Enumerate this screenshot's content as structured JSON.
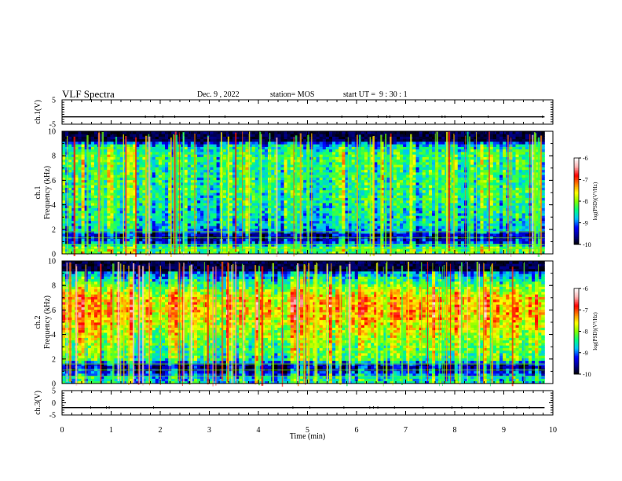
{
  "header": {
    "title": "VLF Spectra",
    "date": "Dec. 9 , 2022",
    "station": "station= MOS",
    "start": "start UT =  9 : 30 : 1"
  },
  "colorbar": {
    "ticks": [
      "-6",
      "-7",
      "-8",
      "-9",
      "-10"
    ],
    "label": "log(PSD)(V²/Hz)",
    "colors": [
      "#000000",
      "#00008f",
      "#0000ff",
      "#00bfff",
      "#00ff80",
      "#80ff00",
      "#ffff00",
      "#ff8000",
      "#ff0000",
      "#ffb0b0",
      "#ffffff"
    ]
  },
  "chart_data": [
    {
      "type": "line",
      "panel": "ch.1(V)",
      "ylabel": "ch.1(V)",
      "ylim": [
        -5,
        5
      ],
      "yticks": [
        "5",
        "-5"
      ],
      "xlim": [
        0,
        10
      ],
      "x": [
        0,
        9.83
      ],
      "y": [
        -2,
        -2
      ]
    },
    {
      "type": "heatmap",
      "panel": "ch.1",
      "ylabel": "ch.1\nFrequency (kHz)",
      "ylim": [
        0,
        10
      ],
      "yticks": [
        "0",
        "2",
        "4",
        "6",
        "8",
        "10"
      ],
      "xlim": [
        0,
        10
      ],
      "x_extent_min": [
        0,
        9.83
      ],
      "colorscale_range": [
        -10,
        -6
      ],
      "band_profile_psd": [
        [
          0.5,
          -8.2
        ],
        [
          1.0,
          -9.3
        ],
        [
          1.5,
          -9.6
        ],
        [
          2.0,
          -8.8
        ],
        [
          3.0,
          -8.6
        ],
        [
          4.0,
          -8.5
        ],
        [
          5.0,
          -8.4
        ],
        [
          6.0,
          -8.4
        ],
        [
          7.0,
          -8.4
        ],
        [
          8.0,
          -8.3
        ],
        [
          8.8,
          -8.6
        ],
        [
          9.3,
          -9.8
        ],
        [
          10.0,
          -10
        ]
      ]
    },
    {
      "type": "heatmap",
      "panel": "ch.2",
      "ylabel": "ch.2\nFrequency (kHz)",
      "ylim": [
        0,
        10
      ],
      "yticks": [
        "0",
        "2",
        "4",
        "6",
        "8",
        "10"
      ],
      "xlim": [
        0,
        10
      ],
      "x_extent_min": [
        0,
        9.83
      ],
      "colorscale_range": [
        -10,
        -6
      ],
      "band_profile_psd": [
        [
          0.5,
          -8.6
        ],
        [
          1.0,
          -9.4
        ],
        [
          1.5,
          -9.6
        ],
        [
          2.0,
          -8.3
        ],
        [
          3.0,
          -8.2
        ],
        [
          4.0,
          -7.9
        ],
        [
          5.0,
          -7.6
        ],
        [
          6.0,
          -7.4
        ],
        [
          7.0,
          -7.5
        ],
        [
          8.0,
          -8.2
        ],
        [
          9.0,
          -9.0
        ],
        [
          9.5,
          -9.8
        ],
        [
          10.0,
          -10
        ]
      ]
    },
    {
      "type": "line",
      "panel": "ch.3(V)",
      "ylabel": "ch.3(V)",
      "ylim": [
        -5,
        5
      ],
      "yticks": [
        "5",
        "0",
        "-5"
      ],
      "xlim": [
        0,
        10
      ],
      "x": [
        0,
        9.83
      ],
      "y": [
        -2,
        -2
      ]
    }
  ],
  "xaxis": {
    "label": "Time (min)",
    "ticks": [
      "0",
      "1",
      "2",
      "3",
      "4",
      "5",
      "6",
      "7",
      "8",
      "9",
      "10"
    ]
  }
}
